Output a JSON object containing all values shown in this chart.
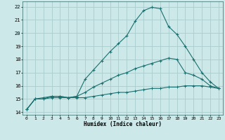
{
  "title": "",
  "xlabel": "Humidex (Indice chaleur)",
  "ylabel": "",
  "bg_color": "#cce8e8",
  "grid_color": "#aacccc",
  "line_color": "#1a7070",
  "xlim": [
    -0.5,
    23.5
  ],
  "ylim": [
    13.8,
    22.4
  ],
  "yticks": [
    14,
    15,
    16,
    17,
    18,
    19,
    20,
    21,
    22
  ],
  "xticks": [
    0,
    1,
    2,
    3,
    4,
    5,
    6,
    7,
    8,
    9,
    10,
    11,
    12,
    13,
    14,
    15,
    16,
    17,
    18,
    19,
    20,
    21,
    22,
    23
  ],
  "line1_x": [
    0,
    1,
    2,
    3,
    4,
    5,
    6,
    7,
    8,
    9,
    10,
    11,
    12,
    13,
    14,
    15,
    16,
    17,
    18,
    19,
    20,
    21,
    22,
    23
  ],
  "line1_y": [
    14.2,
    15.0,
    15.0,
    15.2,
    15.2,
    15.1,
    15.2,
    16.5,
    17.2,
    17.9,
    18.6,
    19.2,
    19.8,
    20.9,
    21.7,
    21.95,
    21.85,
    20.5,
    19.9,
    19.0,
    18.0,
    17.0,
    16.3,
    15.8
  ],
  "line2_x": [
    0,
    1,
    2,
    3,
    4,
    5,
    6,
    7,
    8,
    9,
    10,
    11,
    12,
    13,
    14,
    15,
    16,
    17,
    18,
    19,
    20,
    21,
    22,
    23
  ],
  "line2_y": [
    14.2,
    15.0,
    15.1,
    15.2,
    15.2,
    15.1,
    15.2,
    15.5,
    15.9,
    16.2,
    16.5,
    16.8,
    17.0,
    17.3,
    17.5,
    17.7,
    17.9,
    18.1,
    18.0,
    17.0,
    16.8,
    16.5,
    16.0,
    15.8
  ],
  "line3_x": [
    0,
    1,
    2,
    3,
    4,
    5,
    6,
    7,
    8,
    9,
    10,
    11,
    12,
    13,
    14,
    15,
    16,
    17,
    18,
    19,
    20,
    21,
    22,
    23
  ],
  "line3_y": [
    14.2,
    15.0,
    15.0,
    15.1,
    15.1,
    15.1,
    15.1,
    15.1,
    15.2,
    15.3,
    15.4,
    15.5,
    15.5,
    15.6,
    15.7,
    15.8,
    15.8,
    15.9,
    15.9,
    16.0,
    16.0,
    16.0,
    15.9,
    15.8
  ]
}
